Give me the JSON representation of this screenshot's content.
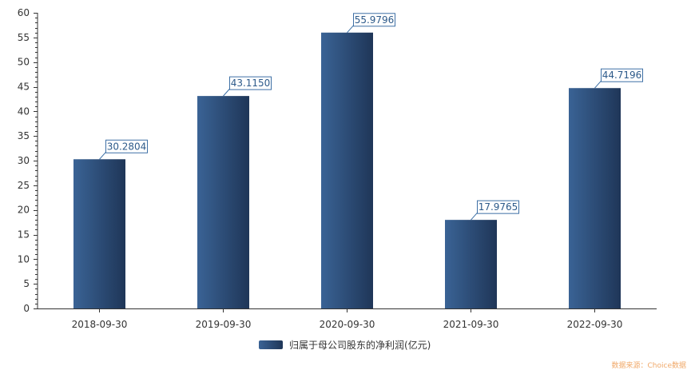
{
  "chart_data": {
    "type": "bar",
    "categories": [
      "2018-09-30",
      "2019-09-30",
      "2020-09-30",
      "2021-09-30",
      "2022-09-30"
    ],
    "series": [
      {
        "name": "归属于母公司股东的净利润(亿元)",
        "values": [
          30.2804,
          43.115,
          55.9796,
          17.9765,
          44.7196
        ]
      }
    ],
    "data_labels": [
      "30.2804",
      "43.1150",
      "55.9796",
      "17.9765",
      "44.7196"
    ],
    "ylim": [
      0,
      60
    ],
    "yticks": [
      0,
      5,
      10,
      15,
      20,
      25,
      30,
      35,
      40,
      45,
      50,
      55,
      60
    ],
    "grid": false,
    "legend_position": "bottom-center",
    "colors": {
      "bar_light": "#3a6395",
      "bar_dark": "#1f3658",
      "label_border": "#3d6fa5",
      "label_text": "#2d5a8a",
      "axis": "#333333"
    }
  },
  "legend": {
    "label": "归属于母公司股东的净利润(亿元)"
  },
  "source": {
    "text": "数据来源：Choice数据"
  }
}
